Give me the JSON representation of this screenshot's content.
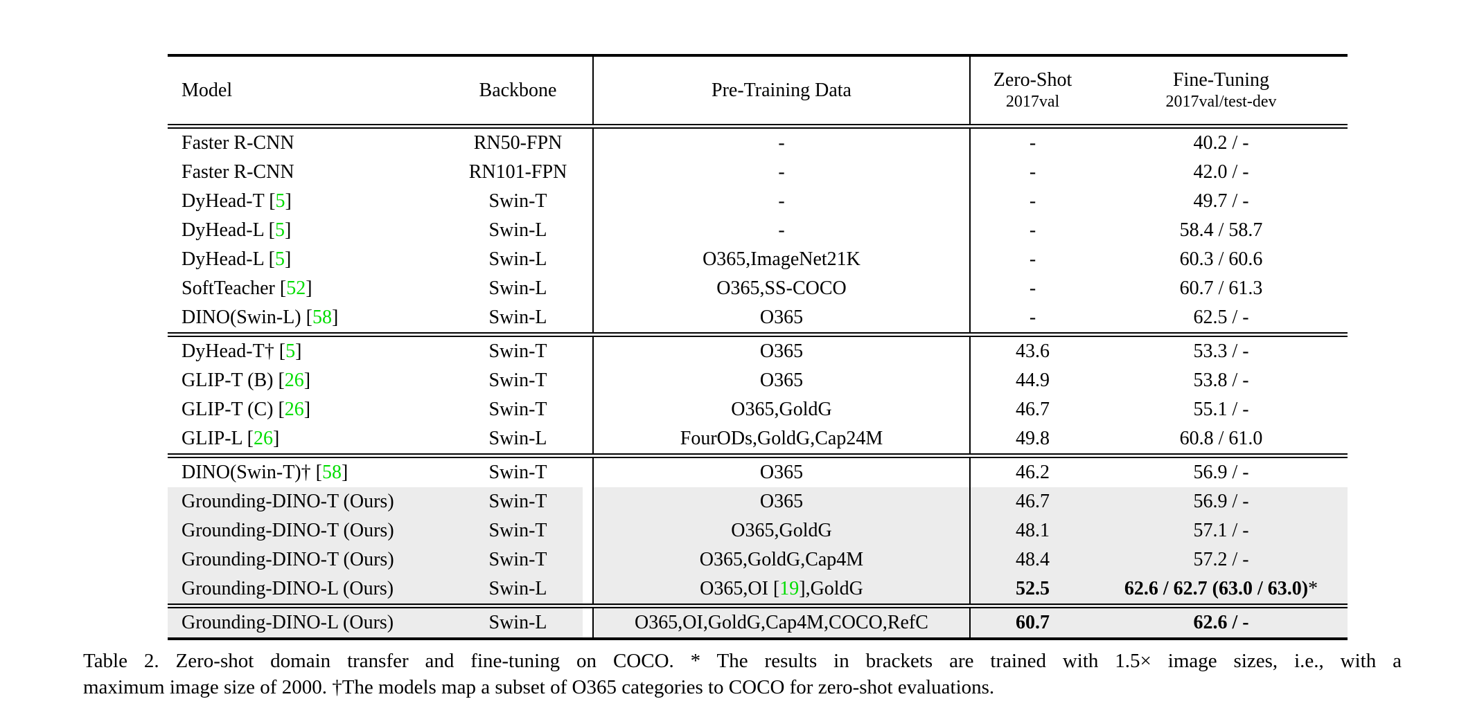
{
  "colors": {
    "highlight": "#ececec",
    "citation": "#00dd00"
  },
  "header": {
    "model": "Model",
    "backbone": "Backbone",
    "pretrain": "Pre-Training Data",
    "zeroshot": {
      "line1": "Zero-Shot",
      "line2": "2017val"
    },
    "finetune": {
      "line1": "Fine-Tuning",
      "line2": "2017val/test-dev"
    }
  },
  "sections": [
    {
      "rows": [
        {
          "hl": false,
          "model": [
            {
              "t": "Faster R-CNN"
            }
          ],
          "backbone": "RN50-FPN",
          "pretrain": [
            {
              "t": "-"
            }
          ],
          "zeroshot": [
            {
              "t": "-"
            }
          ],
          "finetune": [
            {
              "t": "40.2 / -"
            }
          ]
        },
        {
          "hl": false,
          "model": [
            {
              "t": "Faster R-CNN"
            }
          ],
          "backbone": "RN101-FPN",
          "pretrain": [
            {
              "t": "-"
            }
          ],
          "zeroshot": [
            {
              "t": "-"
            }
          ],
          "finetune": [
            {
              "t": "42.0 / -"
            }
          ]
        },
        {
          "hl": false,
          "model": [
            {
              "t": "DyHead-T ["
            },
            {
              "t": "5",
              "cite": true
            },
            {
              "t": "]"
            }
          ],
          "backbone": "Swin-T",
          "pretrain": [
            {
              "t": "-"
            }
          ],
          "zeroshot": [
            {
              "t": "-"
            }
          ],
          "finetune": [
            {
              "t": "49.7 / -"
            }
          ]
        },
        {
          "hl": false,
          "model": [
            {
              "t": "DyHead-L ["
            },
            {
              "t": "5",
              "cite": true
            },
            {
              "t": "]"
            }
          ],
          "backbone": "Swin-L",
          "pretrain": [
            {
              "t": "-"
            }
          ],
          "zeroshot": [
            {
              "t": "-"
            }
          ],
          "finetune": [
            {
              "t": "58.4 / 58.7"
            }
          ]
        },
        {
          "hl": false,
          "model": [
            {
              "t": "DyHead-L ["
            },
            {
              "t": "5",
              "cite": true
            },
            {
              "t": "]"
            }
          ],
          "backbone": "Swin-L",
          "pretrain": [
            {
              "t": "O365,ImageNet21K"
            }
          ],
          "zeroshot": [
            {
              "t": "-"
            }
          ],
          "finetune": [
            {
              "t": "60.3 / 60.6"
            }
          ]
        },
        {
          "hl": false,
          "model": [
            {
              "t": "SoftTeacher ["
            },
            {
              "t": "52",
              "cite": true
            },
            {
              "t": "]"
            }
          ],
          "backbone": "Swin-L",
          "pretrain": [
            {
              "t": "O365,SS-COCO"
            }
          ],
          "zeroshot": [
            {
              "t": "-"
            }
          ],
          "finetune": [
            {
              "t": "60.7 / 61.3"
            }
          ]
        },
        {
          "hl": false,
          "model": [
            {
              "t": "DINO(Swin-L) ["
            },
            {
              "t": "58",
              "cite": true
            },
            {
              "t": "]"
            }
          ],
          "backbone": "Swin-L",
          "pretrain": [
            {
              "t": "O365"
            }
          ],
          "zeroshot": [
            {
              "t": "-"
            }
          ],
          "finetune": [
            {
              "t": "62.5 / -"
            }
          ]
        }
      ]
    },
    {
      "rows": [
        {
          "hl": false,
          "model": [
            {
              "t": "DyHead-T† ["
            },
            {
              "t": "5",
              "cite": true
            },
            {
              "t": "]"
            }
          ],
          "backbone": "Swin-T",
          "pretrain": [
            {
              "t": "O365"
            }
          ],
          "zeroshot": [
            {
              "t": "43.6"
            }
          ],
          "finetune": [
            {
              "t": "53.3 / -"
            }
          ]
        },
        {
          "hl": false,
          "model": [
            {
              "t": "GLIP-T (B) ["
            },
            {
              "t": "26",
              "cite": true
            },
            {
              "t": "]"
            }
          ],
          "backbone": "Swin-T",
          "pretrain": [
            {
              "t": "O365"
            }
          ],
          "zeroshot": [
            {
              "t": "44.9"
            }
          ],
          "finetune": [
            {
              "t": "53.8 / -"
            }
          ]
        },
        {
          "hl": false,
          "model": [
            {
              "t": "GLIP-T (C) ["
            },
            {
              "t": "26",
              "cite": true
            },
            {
              "t": "]"
            }
          ],
          "backbone": "Swin-T",
          "pretrain": [
            {
              "t": "O365,GoldG"
            }
          ],
          "zeroshot": [
            {
              "t": "46.7"
            }
          ],
          "finetune": [
            {
              "t": "55.1 / -"
            }
          ]
        },
        {
          "hl": false,
          "model": [
            {
              "t": "GLIP-L ["
            },
            {
              "t": "26",
              "cite": true
            },
            {
              "t": "]"
            }
          ],
          "backbone": "Swin-L",
          "pretrain": [
            {
              "t": "FourODs,GoldG,Cap24M"
            }
          ],
          "zeroshot": [
            {
              "t": "49.8"
            }
          ],
          "finetune": [
            {
              "t": "60.8 / 61.0"
            }
          ]
        }
      ]
    },
    {
      "rows": [
        {
          "hl": false,
          "model": [
            {
              "t": "DINO(Swin-T)† ["
            },
            {
              "t": "58",
              "cite": true
            },
            {
              "t": "]"
            }
          ],
          "backbone": "Swin-T",
          "pretrain": [
            {
              "t": "O365"
            }
          ],
          "zeroshot": [
            {
              "t": "46.2"
            }
          ],
          "finetune": [
            {
              "t": "56.9 / -"
            }
          ]
        },
        {
          "hl": true,
          "model": [
            {
              "t": "Grounding-DINO-T (Ours)"
            }
          ],
          "backbone": "Swin-T",
          "pretrain": [
            {
              "t": "O365"
            }
          ],
          "zeroshot": [
            {
              "t": "46.7"
            }
          ],
          "finetune": [
            {
              "t": "56.9 / -"
            }
          ]
        },
        {
          "hl": true,
          "model": [
            {
              "t": "Grounding-DINO-T (Ours)"
            }
          ],
          "backbone": "Swin-T",
          "pretrain": [
            {
              "t": "O365,GoldG"
            }
          ],
          "zeroshot": [
            {
              "t": "48.1"
            }
          ],
          "finetune": [
            {
              "t": "57.1 / -"
            }
          ]
        },
        {
          "hl": true,
          "model": [
            {
              "t": "Grounding-DINO-T (Ours)"
            }
          ],
          "backbone": "Swin-T",
          "pretrain": [
            {
              "t": "O365,GoldG,Cap4M"
            }
          ],
          "zeroshot": [
            {
              "t": "48.4"
            }
          ],
          "finetune": [
            {
              "t": "57.2 / -"
            }
          ]
        },
        {
          "hl": true,
          "model": [
            {
              "t": "Grounding-DINO-L (Ours)"
            }
          ],
          "backbone": "Swin-L",
          "pretrain": [
            {
              "t": "O365,OI ["
            },
            {
              "t": "19",
              "cite": true
            },
            {
              "t": "],GoldG"
            }
          ],
          "zeroshot": [
            {
              "t": "52.5",
              "b": true
            }
          ],
          "finetune": [
            {
              "t": "62.6 / 62.7 (63.0 / 63.0)",
              "b": true
            },
            {
              "t": "*"
            }
          ]
        }
      ]
    },
    {
      "rows": [
        {
          "hl": true,
          "model": [
            {
              "t": "Grounding-DINO-L (Ours)"
            }
          ],
          "backbone": "Swin-L",
          "pretrain": [
            {
              "t": "O365,OI,GoldG,Cap4M,COCO,RefC"
            }
          ],
          "zeroshot": [
            {
              "t": "60.7",
              "b": true
            }
          ],
          "finetune": [
            {
              "t": "62.6 / -",
              "b": true
            }
          ]
        }
      ]
    }
  ],
  "caption": {
    "line1": "Table 2.  Zero-shot domain transfer and fine-tuning on COCO. * The results in brackets are trained with 1.5× image sizes, i.e., with a",
    "line2": "maximum image size of 2000. †The models map a subset of O365 categories to COCO for zero-shot evaluations."
  }
}
